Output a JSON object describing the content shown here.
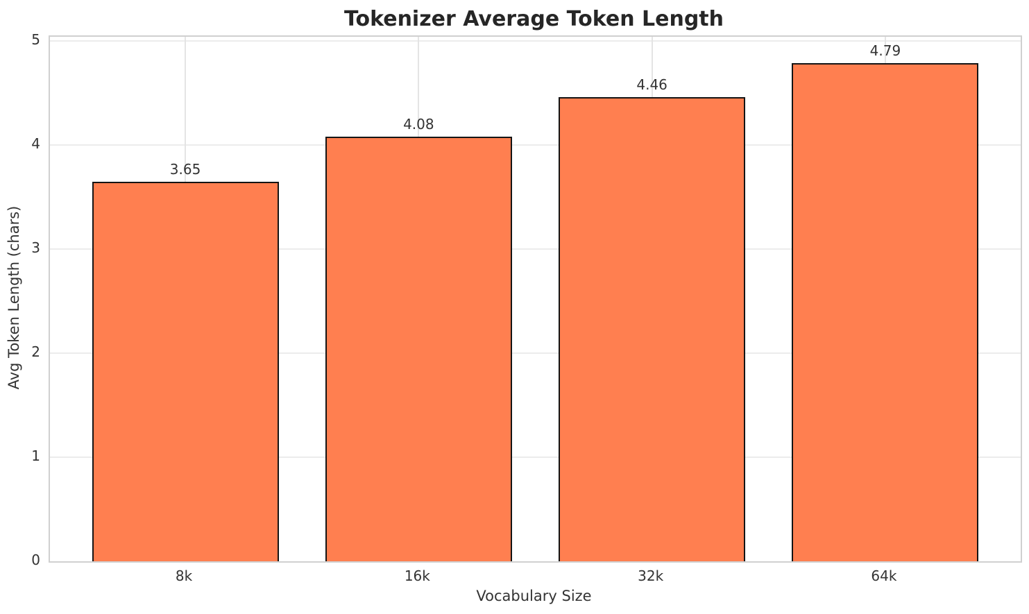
{
  "chart_data": {
    "type": "bar",
    "title": "Tokenizer Average Token Length",
    "xlabel": "Vocabulary Size",
    "ylabel": "Avg Token Length (chars)",
    "categories": [
      "8k",
      "16k",
      "32k",
      "64k"
    ],
    "values": [
      3.65,
      4.08,
      4.46,
      4.79
    ],
    "value_labels": [
      "3.65",
      "4.08",
      "4.46",
      "4.79"
    ],
    "yticks": [
      0,
      1,
      2,
      3,
      4,
      5
    ],
    "ylim": [
      0,
      5
    ],
    "bar_width_fraction": 0.8,
    "grid": true,
    "legend_position": "none",
    "colors": {
      "bar_fill": "#FF7F50",
      "bar_edge": "#141414",
      "grid_horizontal": "#ececec",
      "grid_vertical": "#e4e4e4",
      "spine": "#d0d0d0",
      "text": "#333333",
      "title_text": "#262626",
      "background": "#ffffff"
    }
  }
}
